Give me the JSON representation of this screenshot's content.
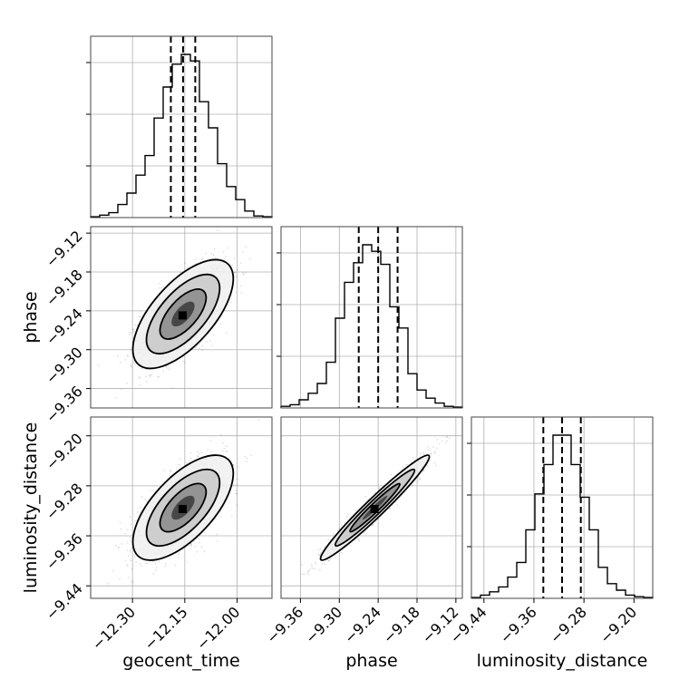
{
  "chart_data": {
    "type": "corner",
    "parameters": [
      "geocent_time",
      "phase",
      "luminosity_distance"
    ],
    "axis_ranges": {
      "geocent_time": [
        -12.42,
        -11.9
      ],
      "phase": [
        -9.39,
        -9.11
      ],
      "luminosity_distance": [
        -9.46,
        -9.17
      ]
    },
    "ticks": {
      "geocent_time": [
        "−12.30",
        "−12.15",
        "−12.00"
      ],
      "phase": [
        "−9.36",
        "−9.30",
        "−9.24",
        "−9.18",
        "−9.12"
      ],
      "luminosity_distance": [
        "−9.44",
        "−9.36",
        "−9.28",
        "−9.20"
      ]
    },
    "tick_values": {
      "geocent_time": [
        -12.3,
        -12.15,
        -12.0
      ],
      "phase": [
        -9.36,
        -9.3,
        -9.24,
        -9.18,
        -9.12
      ],
      "luminosity_distance": [
        -9.44,
        -9.36,
        -9.28,
        -9.2
      ]
    },
    "quantiles": {
      "geocent_time": [
        -12.19,
        -12.155,
        -12.12
      ],
      "phase": [
        -9.27,
        -9.24,
        -9.21
      ],
      "luminosity_distance": [
        -9.345,
        -9.315,
        -9.285
      ]
    },
    "histograms": {
      "geocent_time": [
        0.005,
        0.015,
        0.03,
        0.08,
        0.15,
        0.26,
        0.38,
        0.61,
        0.8,
        0.94,
        1.0,
        0.96,
        0.71,
        0.55,
        0.33,
        0.19,
        0.11,
        0.04,
        0.01,
        0.005
      ],
      "phase": [
        0.01,
        0.02,
        0.05,
        0.09,
        0.15,
        0.28,
        0.55,
        0.77,
        0.89,
        1.0,
        0.96,
        0.88,
        0.62,
        0.49,
        0.21,
        0.11,
        0.06,
        0.03,
        0.01,
        0.005
      ],
      "luminosity_distance": [
        0.005,
        0.02,
        0.04,
        0.07,
        0.13,
        0.22,
        0.42,
        0.64,
        0.82,
        1.0,
        1.0,
        0.82,
        0.62,
        0.42,
        0.19,
        0.09,
        0.05,
        0.02,
        0.01,
        0.005
      ]
    },
    "scatter": [
      {
        "x": "geocent_time",
        "y": "phase",
        "mean": [
          -12.155,
          -9.245
        ],
        "sd": [
          0.06,
          0.035
        ],
        "corr": 0.65
      },
      {
        "x": "geocent_time",
        "y": "luminosity_distance",
        "mean": [
          -12.155,
          -9.315
        ],
        "sd": [
          0.06,
          0.035
        ],
        "corr": 0.65
      },
      {
        "x": "phase",
        "y": "luminosity_distance",
        "mean": [
          -9.245,
          -9.315
        ],
        "sd": [
          0.035,
          0.035
        ],
        "corr": 0.97
      }
    ],
    "grid": true
  },
  "labels": {
    "x_geocent_time": "geocent_time",
    "x_phase": "phase",
    "x_luminosity_distance": "luminosity_distance",
    "y_phase": "phase",
    "y_luminosity_distance": "luminosity_distance"
  }
}
